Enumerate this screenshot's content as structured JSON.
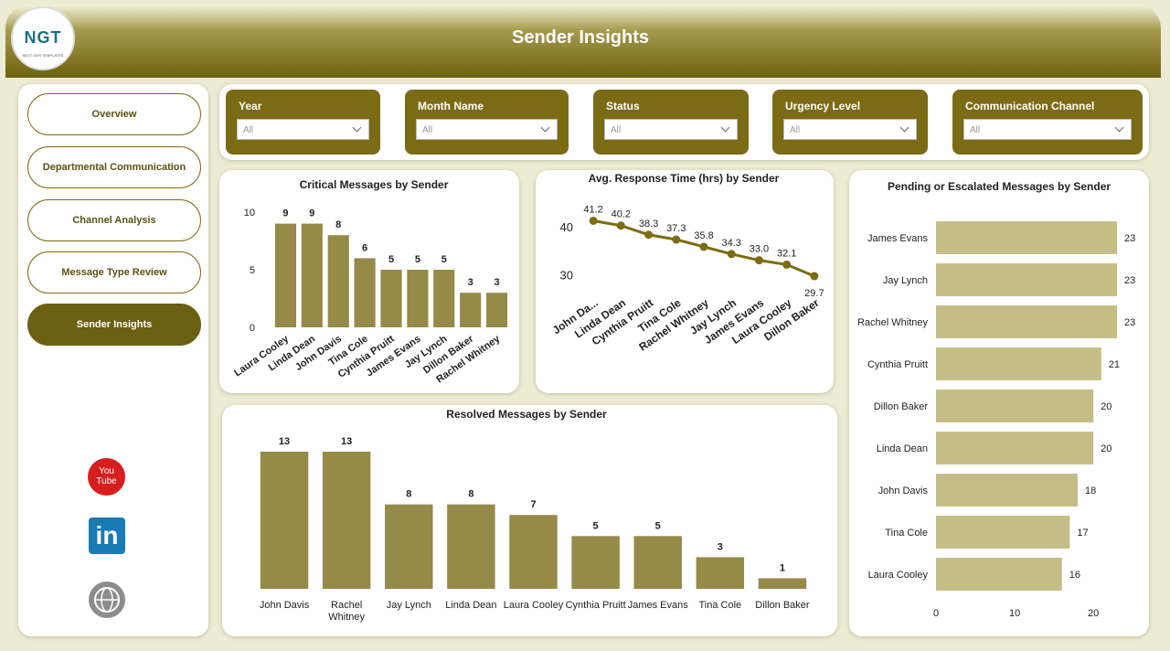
{
  "header": {
    "title": "Sender Insights",
    "logo": "NGT",
    "logo_subtitle": "NEXT GEN TEMPLATES"
  },
  "nav": [
    "Overview",
    "Departmental Communication",
    "Channel Analysis",
    "Message Type Review",
    "Sender Insights"
  ],
  "social": {
    "youtube_top": "You",
    "youtube_bottom": "Tube",
    "linkedin": "in"
  },
  "filters": [
    {
      "label": "Year",
      "value": "All"
    },
    {
      "label": "Month Name",
      "value": "All"
    },
    {
      "label": "Status",
      "value": "All"
    },
    {
      "label": "Urgency Level",
      "value": "All"
    },
    {
      "label": "Communication Channel",
      "value": "All"
    }
  ],
  "chart_data": [
    {
      "type": "bar",
      "title": "Critical Messages by Sender",
      "categories": [
        "Laura Cooley",
        "Linda Dean",
        "John Davis",
        "Tina Cole",
        "Cynthia Pruitt",
        "James Evans",
        "Jay Lynch",
        "Dillon Baker",
        "Rachel Whitney"
      ],
      "values": [
        9,
        9,
        8,
        6,
        5,
        5,
        5,
        3,
        3
      ],
      "color": "#958a47",
      "ylim": [
        0,
        10
      ],
      "yticks": [
        0,
        5,
        10
      ]
    },
    {
      "type": "line",
      "title": "Avg. Response Time (hrs) by Sender",
      "categories": [
        "John Da...",
        "Linda Dean",
        "Cynthia Pruitt",
        "Tina Cole",
        "Rachel Whitney",
        "Jay Lynch",
        "James Evans",
        "Laura Cooley",
        "Dillon Baker"
      ],
      "values": [
        41.2,
        40.2,
        38.3,
        37.3,
        35.8,
        34.3,
        33.0,
        32.1,
        29.7
      ],
      "value_labels": [
        "41.2",
        "40.2",
        "38.3",
        "37.3",
        "35.8",
        "34.3",
        "33.0",
        "32.1",
        "29.7"
      ],
      "color": "#7d6c12",
      "ylim": [
        28,
        43
      ],
      "yticks": [
        30,
        40
      ]
    },
    {
      "type": "bar",
      "title": "Resolved Messages by Sender",
      "categories": [
        "John Davis",
        "Rachel Whitney",
        "Jay Lynch",
        "Linda Dean",
        "Laura Cooley",
        "Cynthia Pruitt",
        "James Evans",
        "Tina Cole",
        "Dillon Baker"
      ],
      "values": [
        13,
        13,
        8,
        8,
        7,
        5,
        5,
        3,
        1
      ],
      "color": "#958a47"
    },
    {
      "type": "bar",
      "orientation": "horizontal",
      "title": "Pending or Escalated Messages by Sender",
      "categories": [
        "James Evans",
        "Jay Lynch",
        "Rachel Whitney",
        "Cynthia Pruitt",
        "Dillon Baker",
        "Linda Dean",
        "John Davis",
        "Tina Cole",
        "Laura Cooley"
      ],
      "values": [
        23,
        23,
        23,
        21,
        20,
        20,
        18,
        17,
        16
      ],
      "color": "#c4bd85",
      "xlim": [
        0,
        23
      ],
      "xticks": [
        0,
        10,
        20
      ]
    }
  ]
}
